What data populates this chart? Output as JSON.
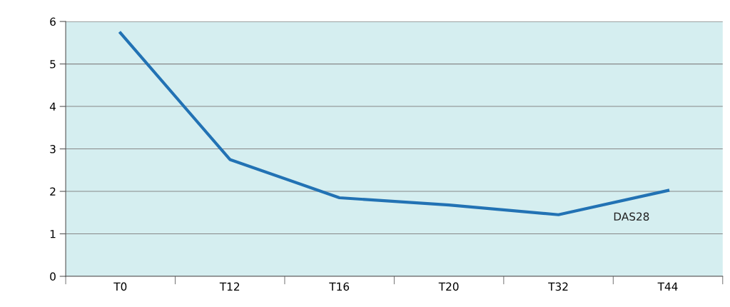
{
  "chart_data": {
    "type": "line",
    "categories": [
      "T0",
      "T12",
      "T16",
      "T20",
      "T32",
      "T44"
    ],
    "series": [
      {
        "name": "DAS28",
        "color": "#2272b4",
        "values": [
          5.73,
          2.75,
          1.85,
          1.68,
          1.45,
          2.02
        ]
      }
    ],
    "ylim": [
      0,
      6
    ],
    "yticks": [
      0,
      1,
      2,
      3,
      4,
      5,
      6
    ],
    "grid": "y",
    "marker": "none",
    "line_style": "solid"
  }
}
